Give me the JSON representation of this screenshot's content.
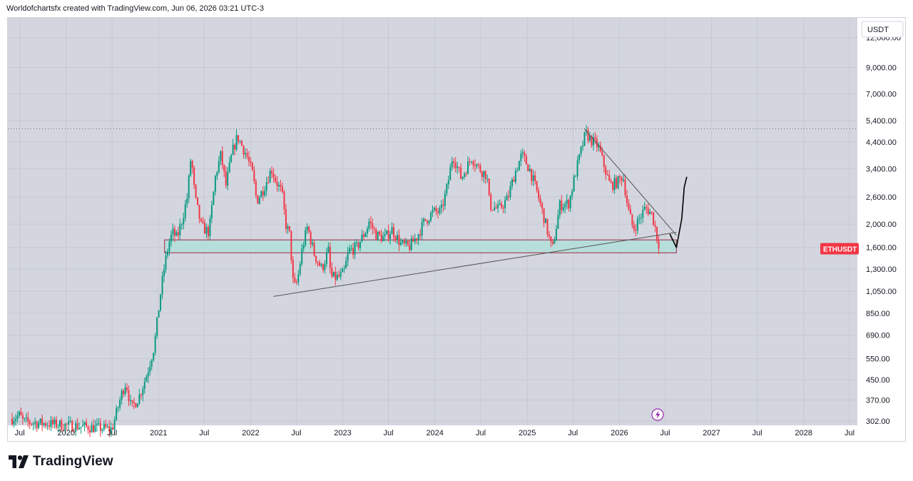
{
  "header": {
    "caption": "Worldofchartsfx created with TradingView.com, Jun 06, 2026 03:21 UTC-3"
  },
  "footer": {
    "brand": "TradingView"
  },
  "colors": {
    "up": "#089981",
    "down": "#f23645",
    "plot_background": "#d3d6df",
    "zone_fill": "#b2dfdb",
    "zone_border": "#9c2740",
    "price_label_bg": "#f23645",
    "trendline": "#555555",
    "drawing": "#000000"
  },
  "chart_data": {
    "type": "candlestick",
    "symbol": "ETHUSDT",
    "quote_currency": "USDT",
    "y_scale": "log",
    "ylim": [
      290,
      14500
    ],
    "xlim": [
      "2019-05-15",
      "2028-08-01"
    ],
    "grid": true,
    "price_ticks": [
      "12,000.00",
      "9,000.00",
      "7,000.00",
      "5,400.00",
      "4,400.00",
      "3,400.00",
      "2,600.00",
      "2,000.00",
      "1,600.00",
      "1,300.00",
      "1,050.00",
      "850.00",
      "690.00",
      "550.00",
      "450.00",
      "370.00",
      "302.00"
    ],
    "time_ticks": [
      {
        "label": "Jul",
        "date": "2019-07-01"
      },
      {
        "label": "2020",
        "date": "2020-01-01"
      },
      {
        "label": "Jul",
        "date": "2020-07-01"
      },
      {
        "label": "2021",
        "date": "2021-01-01"
      },
      {
        "label": "Jul",
        "date": "2021-07-01"
      },
      {
        "label": "2022",
        "date": "2022-01-01"
      },
      {
        "label": "Jul",
        "date": "2022-07-01"
      },
      {
        "label": "2023",
        "date": "2023-01-01"
      },
      {
        "label": "Jul",
        "date": "2023-07-01"
      },
      {
        "label": "2024",
        "date": "2024-01-01"
      },
      {
        "label": "Jul",
        "date": "2024-07-01"
      },
      {
        "label": "2025",
        "date": "2025-01-01"
      },
      {
        "label": "Jul",
        "date": "2025-07-01"
      },
      {
        "label": "2026",
        "date": "2026-01-01"
      },
      {
        "label": "Jul",
        "date": "2026-07-01"
      },
      {
        "label": "2027",
        "date": "2027-01-01"
      },
      {
        "label": "Jul",
        "date": "2027-07-01"
      },
      {
        "label": "2028",
        "date": "2028-01-01"
      },
      {
        "label": "Jul",
        "date": "2028-07-01"
      }
    ],
    "last_price_label": "ETHUSDT",
    "last_price": 1580,
    "price_path": [
      [
        "2019-06-01",
        310
      ],
      [
        "2019-07-01",
        320
      ],
      [
        "2019-07-15",
        300
      ],
      [
        "2020-07-01",
        280
      ],
      [
        "2020-08-10",
        400
      ],
      [
        "2020-08-25",
        440
      ],
      [
        "2020-09-15",
        340
      ],
      [
        "2020-10-15",
        380
      ],
      [
        "2020-11-15",
        470
      ],
      [
        "2020-12-15",
        620
      ],
      [
        "2021-01-10",
        1050
      ],
      [
        "2021-01-25",
        1350
      ],
      [
        "2021-02-10",
        1650
      ],
      [
        "2021-02-25",
        1850
      ],
      [
        "2021-03-15",
        1750
      ],
      [
        "2021-04-05",
        2100
      ],
      [
        "2021-04-25",
        2600
      ],
      [
        "2021-05-10",
        3900
      ],
      [
        "2021-05-25",
        2600
      ],
      [
        "2021-06-20",
        1950
      ],
      [
        "2021-07-20",
        1850
      ],
      [
        "2021-08-15",
        3200
      ],
      [
        "2021-09-05",
        3900
      ],
      [
        "2021-09-25",
        2900
      ],
      [
        "2021-10-20",
        4000
      ],
      [
        "2021-11-10",
        4650
      ],
      [
        "2021-11-25",
        4300
      ],
      [
        "2021-12-15",
        3900
      ],
      [
        "2022-01-10",
        3200
      ],
      [
        "2022-01-25",
        2500
      ],
      [
        "2022-02-20",
        2800
      ],
      [
        "2022-03-25",
        3400
      ],
      [
        "2022-04-10",
        3050
      ],
      [
        "2022-05-05",
        2700
      ],
      [
        "2022-05-20",
        2000
      ],
      [
        "2022-06-05",
        1800
      ],
      [
        "2022-06-20",
        1080
      ],
      [
        "2022-07-05",
        1150
      ],
      [
        "2022-07-25",
        1600
      ],
      [
        "2022-08-14",
        1950
      ],
      [
        "2022-09-10",
        1500
      ],
      [
        "2022-10-10",
        1300
      ],
      [
        "2022-11-05",
        1550
      ],
      [
        "2022-11-15",
        1200
      ],
      [
        "2022-12-15",
        1200
      ],
      [
        "2023-01-05",
        1250
      ],
      [
        "2023-01-25",
        1550
      ],
      [
        "2023-02-25",
        1600
      ],
      [
        "2023-04-05",
        1900
      ],
      [
        "2023-04-15",
        2050
      ],
      [
        "2023-05-15",
        1800
      ],
      [
        "2023-06-15",
        1750
      ],
      [
        "2023-07-15",
        1900
      ],
      [
        "2023-08-20",
        1650
      ],
      [
        "2023-09-20",
        1600
      ],
      [
        "2023-10-25",
        1800
      ],
      [
        "2023-11-20",
        2050
      ],
      [
        "2023-12-25",
        2250
      ],
      [
        "2024-01-25",
        2250
      ],
      [
        "2024-02-20",
        2900
      ],
      [
        "2024-03-12",
        3900
      ],
      [
        "2024-04-15",
        3100
      ],
      [
        "2024-05-25",
        3800
      ],
      [
        "2024-06-25",
        3400
      ],
      [
        "2024-07-25",
        3200
      ],
      [
        "2024-08-05",
        2400
      ],
      [
        "2024-09-10",
        2300
      ],
      [
        "2024-10-15",
        2550
      ],
      [
        "2024-11-10",
        3200
      ],
      [
        "2024-12-10",
        3900
      ],
      [
        "2025-01-10",
        3400
      ],
      [
        "2025-02-05",
        2800
      ],
      [
        "2025-03-10",
        2100
      ],
      [
        "2025-04-10",
        1550
      ],
      [
        "2025-05-10",
        2400
      ],
      [
        "2025-06-15",
        2450
      ],
      [
        "2025-07-15",
        3400
      ],
      [
        "2025-08-20",
        4800
      ],
      [
        "2025-09-10",
        4500
      ],
      [
        "2025-10-10",
        4200
      ],
      [
        "2025-11-05",
        3400
      ],
      [
        "2025-11-25",
        2900
      ],
      [
        "2025-12-25",
        3000
      ],
      [
        "2026-01-15",
        3200
      ],
      [
        "2026-02-05",
        2300
      ],
      [
        "2026-02-25",
        1900
      ],
      [
        "2026-03-20",
        2100
      ],
      [
        "2026-04-15",
        2350
      ],
      [
        "2026-05-10",
        2200
      ],
      [
        "2026-05-25",
        1900
      ],
      [
        "2026-06-06",
        1580
      ]
    ],
    "support_zone": {
      "start": "2021-01-25",
      "end": "2026-08-15",
      "low": 1520,
      "high": 1720
    },
    "resistance_level": 5000,
    "trendlines": [
      {
        "name": "ascending",
        "from": [
          "2022-04-01",
          1000
        ],
        "to": [
          "2026-08-15",
          1850
        ]
      },
      {
        "name": "descending",
        "from": [
          "2025-08-15",
          5000
        ],
        "to": [
          "2026-08-15",
          1800
        ]
      }
    ],
    "projection": [
      [
        "2026-07-20",
        1820
      ],
      [
        "2026-08-10",
        1640
      ],
      [
        "2026-08-15",
        1600
      ],
      [
        "2026-09-05",
        2100
      ],
      [
        "2026-09-15",
        2850
      ],
      [
        "2026-09-25",
        3150
      ]
    ]
  }
}
